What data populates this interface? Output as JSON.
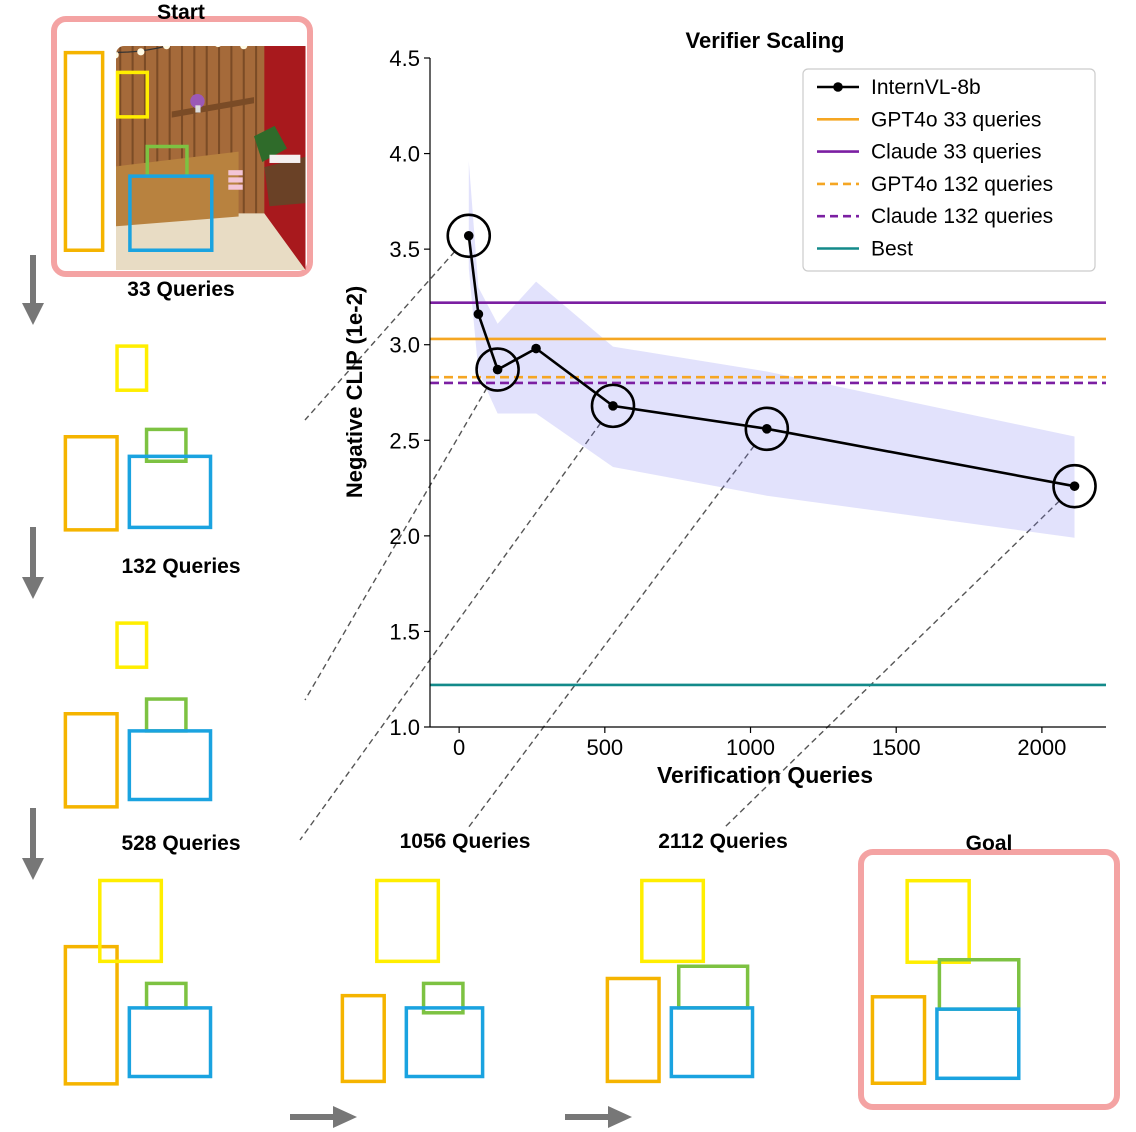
{
  "chart_data": {
    "type": "line",
    "title": "Verifier Scaling",
    "xlabel": "Verification Queries",
    "ylabel": "Negative CLIP (1e-2)",
    "xlim": [
      -100,
      2220
    ],
    "ylim": [
      1.0,
      4.5
    ],
    "xticks": [
      0,
      500,
      1000,
      1500,
      2000
    ],
    "yticks": [
      1.0,
      1.5,
      2.0,
      2.5,
      3.0,
      3.5,
      4.0,
      4.5
    ],
    "grid": false,
    "legend_position": "top-right",
    "series": [
      {
        "name": "InternVL-8b",
        "color": "#000000",
        "x": [
          33,
          66,
          132,
          264,
          528,
          1056,
          2112
        ],
        "y": [
          3.57,
          3.16,
          2.87,
          2.98,
          2.68,
          2.56,
          2.26
        ],
        "band_upper": [
          3.96,
          3.3,
          3.11,
          3.33,
          2.99,
          2.86,
          2.52
        ],
        "band_lower": [
          3.4,
          2.86,
          2.64,
          2.64,
          2.36,
          2.21,
          1.99
        ]
      }
    ],
    "reference_lines": [
      {
        "name": "GPT4o 33 queries",
        "y": 3.03,
        "color": "#f5a623",
        "dash": false
      },
      {
        "name": "Claude 33 queries",
        "y": 3.22,
        "color": "#7b1fa2",
        "dash": false
      },
      {
        "name": "GPT4o 132 queries",
        "y": 2.83,
        "color": "#f5a623",
        "dash": true
      },
      {
        "name": "Claude 132 queries",
        "y": 2.8,
        "color": "#7b1fa2",
        "dash": true
      },
      {
        "name": "Best",
        "y": 1.22,
        "color": "#138a8a",
        "dash": false
      }
    ],
    "band_color": "#7b7bf0",
    "highlight_x": [
      33,
      132,
      528,
      1056,
      2112
    ]
  },
  "panels": [
    {
      "label": "Start",
      "outline": true,
      "queries": 0
    },
    {
      "label": "33 Queries",
      "outline": false,
      "queries": 33
    },
    {
      "label": "132 Queries",
      "outline": false,
      "queries": 132
    },
    {
      "label": "528 Queries",
      "outline": false,
      "queries": 528
    },
    {
      "label": "1056 Queries",
      "outline": false,
      "queries": 1056
    },
    {
      "label": "2112 Queries",
      "outline": false,
      "queries": 2112
    },
    {
      "label": "Goal",
      "outline": true,
      "queries": null
    }
  ],
  "colors": {
    "outline": "#f4a3a3",
    "box_plant": "#f5b400",
    "box_frame": "#ffee00",
    "box_tv": "#7dc242",
    "box_cabinet": "#1aa3e0",
    "arrow": "#777777"
  }
}
